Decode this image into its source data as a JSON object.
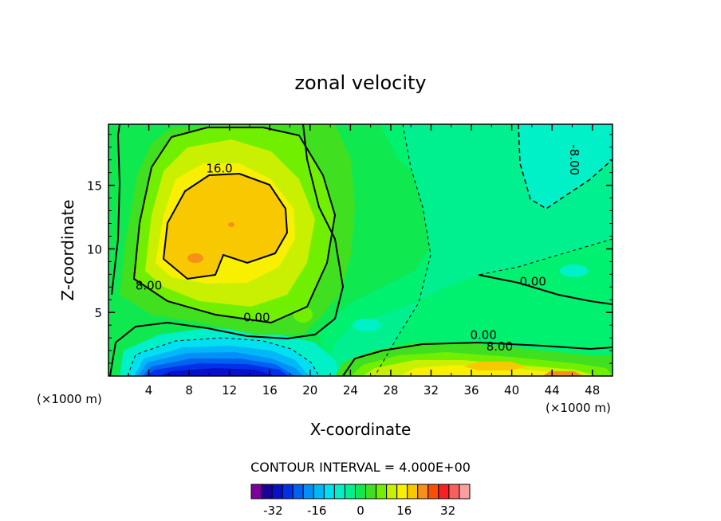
{
  "chart_data": {
    "type": "contour",
    "title": "zonal velocity",
    "xlabel": "X-coordinate",
    "ylabel": "Z-coordinate",
    "x_unit": "(×1000 m)",
    "z_unit": "(×1000 m)",
    "xlim": [
      0,
      50
    ],
    "zlim": [
      0,
      19.8
    ],
    "x_ticks": [
      4,
      8,
      12,
      16,
      20,
      24,
      28,
      32,
      36,
      40,
      44,
      48
    ],
    "z_ticks": [
      5,
      10,
      15
    ],
    "contour_interval_text": "CONTOUR INTERVAL = 4.000E+00",
    "contour_interval": 4,
    "contour_labels": [
      {
        "text": "16.0",
        "x": 11.0,
        "z": 16.0
      },
      {
        "text": "8.00",
        "x": 4.0,
        "z": 6.8
      },
      {
        "text": "0.00",
        "x": 14.7,
        "z": 4.3
      },
      {
        "text": "-8.00",
        "x": 45.8,
        "z": 17.0,
        "rotated": true
      },
      {
        "text": "0.00",
        "x": 42.1,
        "z": 7.1
      },
      {
        "text": "0.00",
        "x": 37.2,
        "z": 2.9
      },
      {
        "text": "8.00",
        "x": 38.8,
        "z": 2.0
      }
    ],
    "colorbar": {
      "levels": [
        -40,
        -36,
        -32,
        -28,
        -24,
        -20,
        -16,
        -12,
        -8,
        -4,
        0,
        4,
        8,
        12,
        16,
        20,
        24,
        28,
        32,
        36,
        40
      ],
      "colors": [
        "#7a0099",
        "#1a0099",
        "#0a10c8",
        "#0030e8",
        "#0060f0",
        "#0090f8",
        "#00b8f8",
        "#00e0f0",
        "#00f0c8",
        "#00f090",
        "#10e850",
        "#40e020",
        "#70f000",
        "#c8f000",
        "#f8f000",
        "#f8c800",
        "#f89018",
        "#f85000",
        "#f82020",
        "#f86060",
        "#f8a0a0"
      ],
      "tick_labels": [
        "-32",
        "-16",
        "0",
        "16",
        "32"
      ]
    }
  }
}
